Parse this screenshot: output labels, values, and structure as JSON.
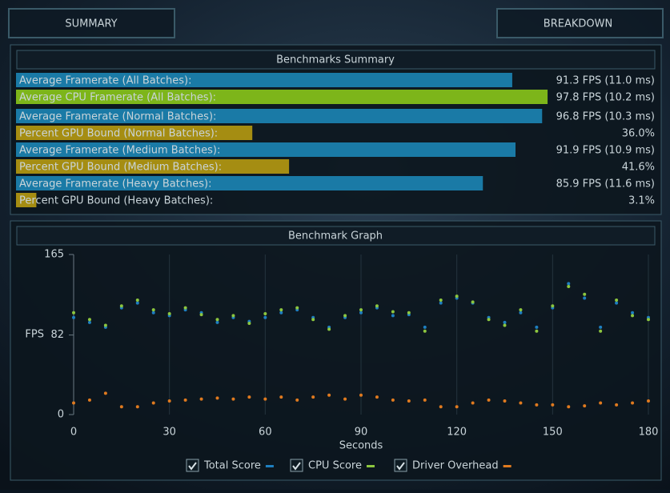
{
  "tabs": {
    "summary": "SUMMARY",
    "breakdown": "BREAKDOWN"
  },
  "summary": {
    "title": "Benchmarks Summary",
    "rows": [
      {
        "label": "Average Framerate (All Batches):",
        "value": 91.3,
        "value_label": "91.3 FPS (11.0 ms)",
        "color": "#1a7aa6"
      },
      {
        "label": "Average CPU Framerate (All Batches):",
        "value": 97.8,
        "value_label": "97.8 FPS (10.2 ms)",
        "color": "#7db51a"
      },
      {
        "label": "Average Framerate (Normal Batches):",
        "value": 96.8,
        "value_label": "96.8 FPS (10.3 ms)",
        "color": "#1a7aa6"
      },
      {
        "label": "Percent GPU Bound (Normal Batches):",
        "value": 36,
        "value_label": "36.0%",
        "color": "#a58d12"
      },
      {
        "label": "Average Framerate (Medium Batches):",
        "value": 91.9,
        "value_label": "91.9 FPS (10.9 ms)",
        "color": "#1a7aa6"
      },
      {
        "label": "Percent GPU Bound (Medium Batches):",
        "value": 41.6,
        "value_label": "41.6%",
        "color": "#a58d12"
      },
      {
        "label": "Average Framerate (Heavy Batches):",
        "value": 85.9,
        "value_label": "85.9 FPS (11.6 ms)",
        "color": "#1a7aa6"
      },
      {
        "label": "Percent GPU Bound (Heavy Batches):",
        "value": 3.1,
        "value_label": "3.1%",
        "color": "#a58d12"
      }
    ]
  },
  "chart_data": {
    "type": "scatter",
    "title": "Benchmark Graph",
    "x_label": "Seconds",
    "y_label": "FPS",
    "x": [
      0,
      5,
      10,
      15,
      20,
      25,
      30,
      35,
      40,
      45,
      50,
      55,
      60,
      65,
      70,
      75,
      80,
      85,
      90,
      95,
      100,
      105,
      110,
      115,
      120,
      125,
      130,
      135,
      140,
      145,
      150,
      155,
      160,
      165,
      170,
      175,
      180
    ],
    "xlim": [
      0,
      180
    ],
    "xticks": [
      0,
      30,
      60,
      90,
      120,
      150,
      180
    ],
    "ylim": [
      0,
      165
    ],
    "yticks": [
      0,
      82,
      165
    ],
    "series": [
      {
        "name": "Total Score",
        "color": "#1e7fc0",
        "values": [
          100,
          95,
          90,
          110,
          115,
          105,
          102,
          108,
          105,
          95,
          100,
          96,
          100,
          105,
          108,
          100,
          90,
          100,
          105,
          110,
          102,
          103,
          90,
          115,
          120,
          115,
          100,
          95,
          105,
          90,
          110,
          135,
          120,
          90,
          115,
          105,
          100
        ]
      },
      {
        "name": "CPU Score",
        "color": "#8cc63f",
        "values": [
          105,
          98,
          92,
          112,
          118,
          108,
          104,
          110,
          103,
          98,
          102,
          94,
          104,
          108,
          110,
          98,
          88,
          102,
          108,
          112,
          106,
          105,
          86,
          118,
          122,
          116,
          98,
          92,
          108,
          86,
          112,
          132,
          124,
          86,
          118,
          102,
          98
        ]
      },
      {
        "name": "Driver Overhead",
        "color": "#e07a1f",
        "values": [
          12,
          15,
          22,
          8,
          8,
          12,
          14,
          15,
          16,
          17,
          16,
          18,
          16,
          18,
          15,
          18,
          20,
          16,
          20,
          18,
          15,
          14,
          15,
          8,
          8,
          12,
          15,
          14,
          12,
          10,
          10,
          8,
          9,
          12,
          10,
          12,
          14
        ]
      }
    ]
  }
}
